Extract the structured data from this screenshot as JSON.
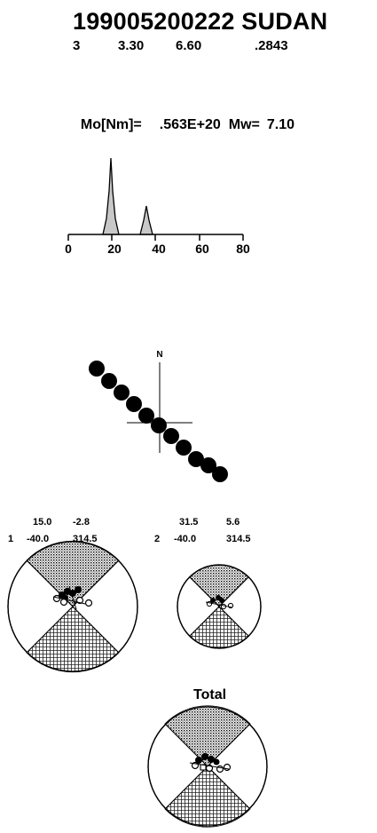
{
  "header": {
    "title": "199005200222 SUDAN",
    "params": [
      "3",
      "3.30",
      "6.60",
      ".2843"
    ]
  },
  "moment": {
    "label": "Mo[Nm]=",
    "value": ".563E+20",
    "mw_label": "Mw=",
    "mw_value": "7.10"
  },
  "stf": {
    "ticks": [
      "0",
      "20",
      "40",
      "60",
      "80"
    ],
    "xlim": [
      0,
      80
    ],
    "peaks": [
      {
        "time": 20,
        "amp": 1.0
      },
      {
        "time": 36,
        "amp": 0.42
      }
    ]
  },
  "map": {
    "north_label": "N"
  },
  "subevents": [
    {
      "index": "1",
      "time": "15.0",
      "distance": "-2.8",
      "depth": "-40.0",
      "strike": "314.5"
    },
    {
      "index": "2",
      "time": "31.5",
      "distance": "5.6",
      "depth": "-40.0",
      "strike": "314.5"
    }
  ],
  "total": {
    "label": "Total"
  },
  "colors": {
    "ink": "#000000",
    "stf_fill": "#c8c8c8",
    "background": "#ffffff"
  }
}
